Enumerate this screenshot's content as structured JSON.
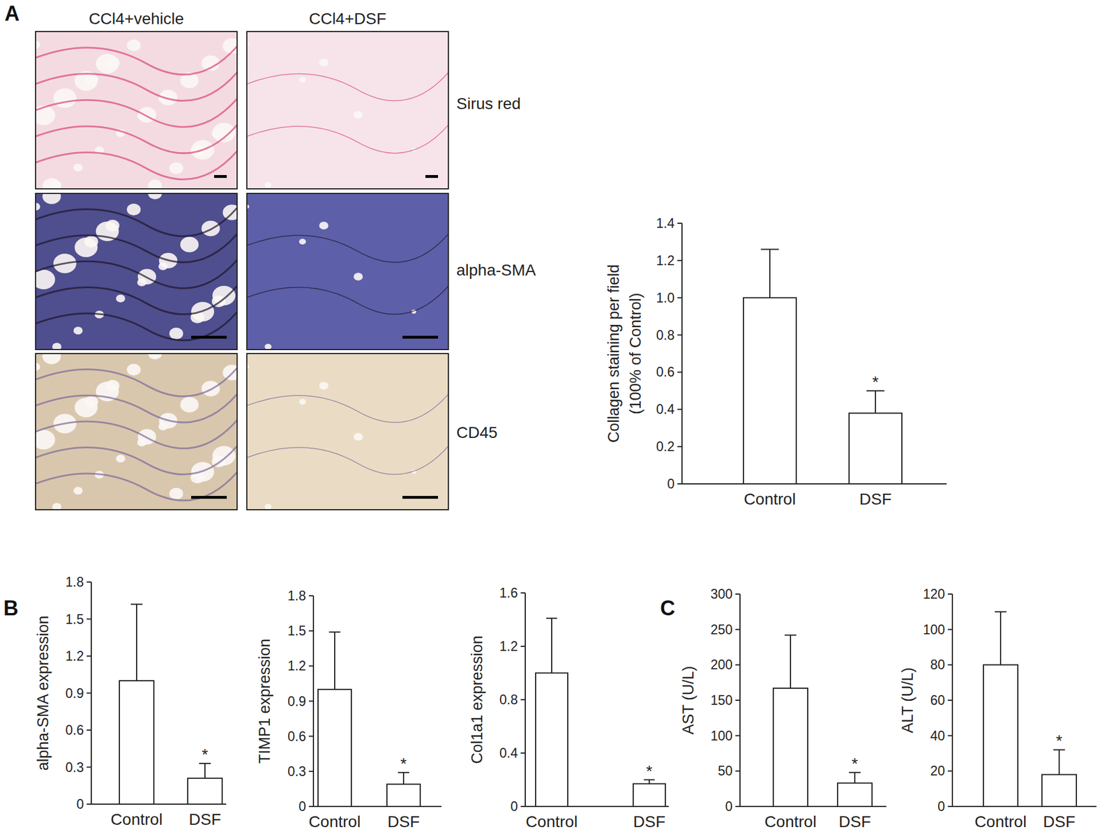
{
  "figure": {
    "panels": [
      "A",
      "B",
      "C"
    ],
    "image_columns": [
      "CCl4+vehicle",
      "CCl4+DSF"
    ],
    "image_rows": [
      "Sirus red",
      "alpha-SMA",
      "CD45"
    ]
  },
  "chart_data": [
    {
      "type": "bar",
      "ylabel": [
        "Collagen staining per field",
        "(100% of Control)"
      ],
      "categories": [
        "Control",
        "DSF"
      ],
      "values": [
        1.0,
        0.38
      ],
      "errors": [
        0.26,
        0.12
      ],
      "color": "#ffffff",
      "ylim": [
        0,
        1.4
      ],
      "yticks": [
        0,
        0.2,
        0.4,
        0.6,
        0.8,
        {
          "value": 1,
          "label": "1.0"
        },
        1.2,
        1.4
      ],
      "annotations": [
        {
          "text": "*",
          "category": "DSF"
        }
      ]
    },
    {
      "type": "bar",
      "ylabel": [
        "alpha-SMA expression"
      ],
      "categories": [
        "Control",
        "DSF"
      ],
      "values": [
        1.0,
        0.21
      ],
      "errors": [
        0.62,
        0.12
      ],
      "color": "#ffffff",
      "ylim": [
        0,
        1.8
      ],
      "yticks": [
        0,
        0.3,
        0.6,
        0.9,
        1.2,
        1.5,
        1.8
      ],
      "annotations": [
        {
          "text": "*",
          "category": "DSF"
        }
      ]
    },
    {
      "type": "bar",
      "ylabel": [
        "TIMP1 expression"
      ],
      "categories": [
        "Control",
        "DSF"
      ],
      "values": [
        1.0,
        0.19
      ],
      "errors": [
        0.49,
        0.1
      ],
      "color": "#ffffff",
      "ylim": [
        0,
        1.8
      ],
      "yticks": [
        0,
        0.3,
        0.6,
        0.9,
        1.2,
        1.5,
        1.8
      ],
      "annotations": [
        {
          "text": "*",
          "category": "DSF"
        }
      ]
    },
    {
      "type": "bar",
      "ylabel": [
        "Col1a1 expression"
      ],
      "categories": [
        "Control",
        "DSF"
      ],
      "values": [
        1.0,
        0.17
      ],
      "errors": [
        0.41,
        0.03
      ],
      "color": "#ffffff",
      "ylim": [
        0,
        1.6
      ],
      "yticks": [
        0,
        0.4,
        0.8,
        1.2,
        1.6
      ],
      "annotations": [
        {
          "text": "*",
          "category": "DSF"
        }
      ]
    },
    {
      "type": "bar",
      "ylabel": [
        "AST (U/L)"
      ],
      "categories": [
        "Control",
        "DSF"
      ],
      "values": [
        167,
        33
      ],
      "errors": [
        75,
        15
      ],
      "color": "#ffffff",
      "ylim": [
        0,
        300
      ],
      "yticks": [
        0,
        50,
        100,
        150,
        200,
        250,
        300
      ],
      "annotations": [
        {
          "text": "*",
          "category": "DSF"
        }
      ]
    },
    {
      "type": "bar",
      "ylabel": [
        "ALT (U/L)"
      ],
      "categories": [
        "Control",
        "DSF"
      ],
      "values": [
        80,
        18
      ],
      "errors": [
        30,
        14
      ],
      "color": "#ffffff",
      "ylim": [
        0,
        120
      ],
      "yticks": [
        0,
        20,
        40,
        60,
        80,
        100,
        120
      ],
      "annotations": [
        {
          "text": "*",
          "category": "DSF"
        }
      ]
    }
  ]
}
